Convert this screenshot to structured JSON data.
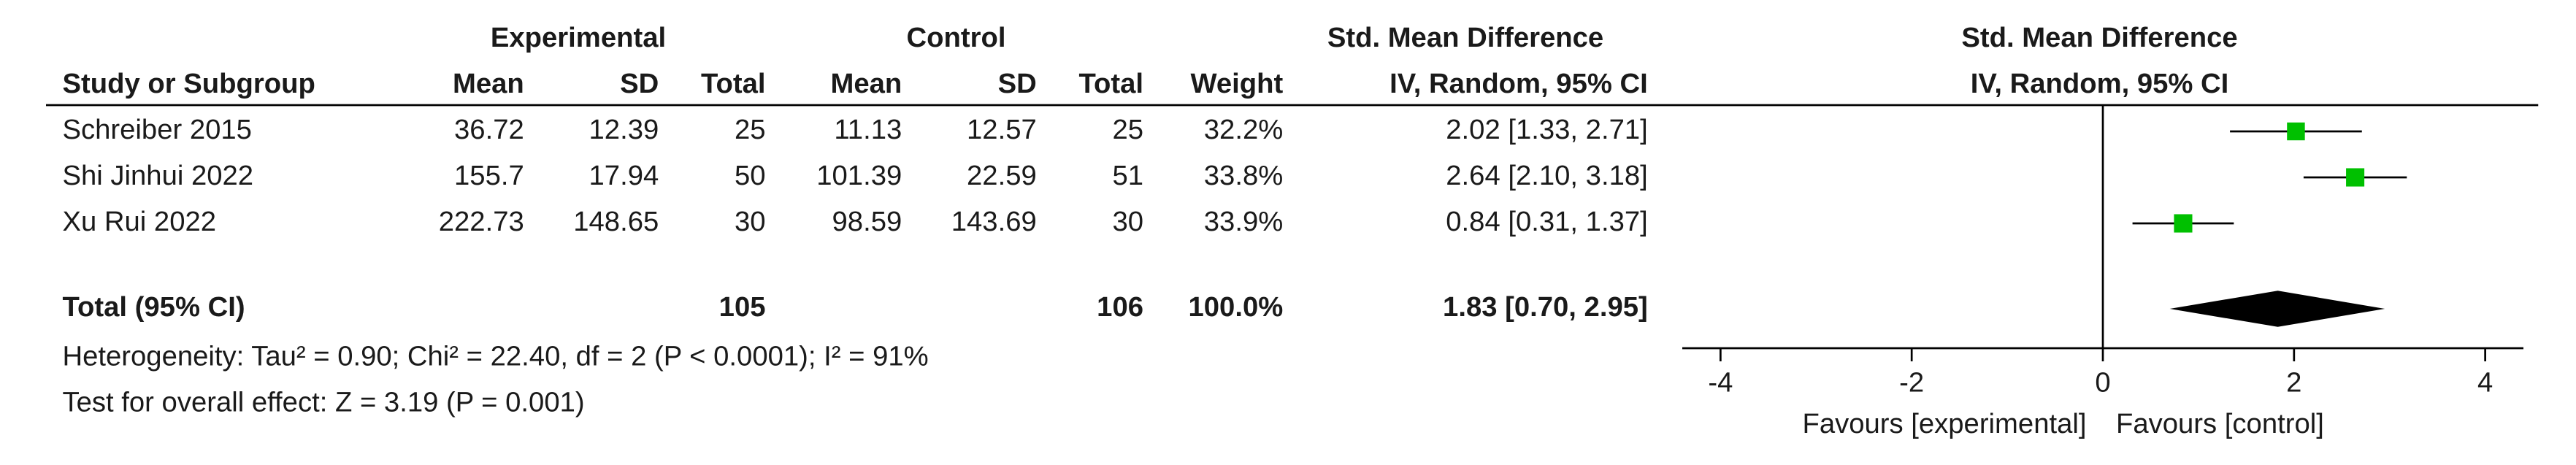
{
  "chart_data": {
    "type": "forest",
    "group_headers": {
      "experimental": "Experimental",
      "control": "Control",
      "effect": "Std. Mean Difference",
      "plot": "Std. Mean Difference"
    },
    "column_headers": {
      "study": "Study or Subgroup",
      "exp_mean": "Mean",
      "exp_sd": "SD",
      "exp_total": "Total",
      "ctl_mean": "Mean",
      "ctl_sd": "SD",
      "ctl_total": "Total",
      "weight": "Weight",
      "effect": "IV, Random, 95% CI",
      "plot": "IV, Random, 95% CI"
    },
    "studies": [
      {
        "name": "Schreiber 2015",
        "exp_mean": 36.72,
        "exp_sd": 12.39,
        "exp_total": 25,
        "ctl_mean": 11.13,
        "ctl_sd": 12.57,
        "ctl_total": 25,
        "weight": 32.2,
        "weight_label": "32.2%",
        "smd": 2.02,
        "ci_lower": 1.33,
        "ci_upper": 2.71,
        "ci_label": "2.02 [1.33, 2.71]"
      },
      {
        "name": "Shi Jinhui 2022",
        "exp_mean": 155.7,
        "exp_sd": 17.94,
        "exp_total": 50,
        "ctl_mean": 101.39,
        "ctl_sd": 22.59,
        "ctl_total": 51,
        "weight": 33.8,
        "weight_label": "33.8%",
        "smd": 2.64,
        "ci_lower": 2.1,
        "ci_upper": 3.18,
        "ci_label": "2.64 [2.10, 3.18]"
      },
      {
        "name": "Xu Rui 2022",
        "exp_mean": 222.73,
        "exp_sd": 148.65,
        "exp_total": 30,
        "ctl_mean": 98.59,
        "ctl_sd": 143.69,
        "ctl_total": 30,
        "weight": 33.9,
        "weight_label": "33.9%",
        "smd": 0.84,
        "ci_lower": 0.31,
        "ci_upper": 1.37,
        "ci_label": "0.84 [0.31, 1.37]"
      }
    ],
    "total": {
      "name": "Total (95% CI)",
      "exp_total": 105,
      "ctl_total": 106,
      "weight": 100,
      "weight_label": "100.0%",
      "smd": 1.83,
      "ci_lower": 0.7,
      "ci_upper": 2.95,
      "ci_label": "1.83 [0.70, 2.95]"
    },
    "heterogeneity": "Heterogeneity: Tau² = 0.90; Chi² = 22.40, df = 2 (P < 0.0001); I² = 91%",
    "overall_effect": "Test for overall effect: Z = 3.19 (P = 0.001)",
    "xlim": [
      -4.4,
      4.4
    ],
    "xticks": [
      -4,
      -2,
      0,
      2,
      4
    ],
    "xlabel_left": "Favours [experimental]",
    "xlabel_right": "Favours [control]",
    "marker_color": "#00c000",
    "diamond_color": "#000000"
  }
}
